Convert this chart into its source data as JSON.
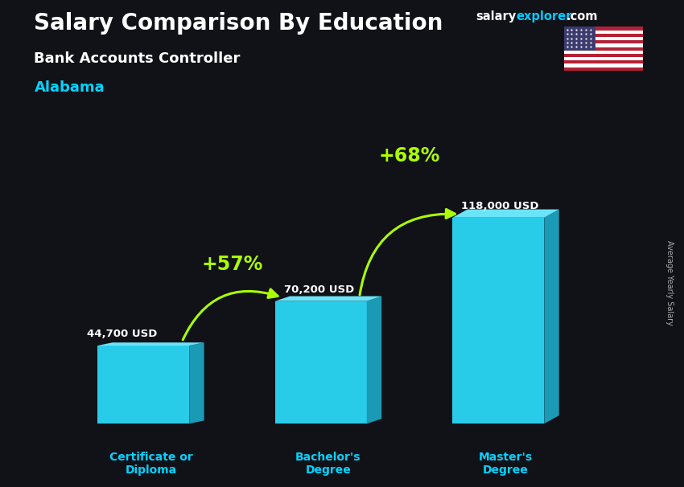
{
  "title": "Salary Comparison By Education",
  "subtitle": "Bank Accounts Controller",
  "location": "Alabama",
  "categories": [
    "Certificate or\nDiploma",
    "Bachelor's\nDegree",
    "Master's\nDegree"
  ],
  "values": [
    44700,
    70200,
    118000
  ],
  "value_labels": [
    "44,700 USD",
    "70,200 USD",
    "118,000 USD"
  ],
  "pct_labels": [
    "+57%",
    "+68%"
  ],
  "bar_face_color": "#29cce8",
  "bar_top_color": "#6ae4f7",
  "bar_side_color": "#1a9ab5",
  "bg_color": "#111118",
  "title_color": "#ffffff",
  "subtitle_color": "#ffffff",
  "location_color": "#00d4ff",
  "value_color": "#ffffff",
  "pct_color": "#aaff00",
  "xlabel_color": "#00d4ff",
  "arrow_color": "#aaff00",
  "ylabel_text": "Average Yearly Salary",
  "ylim": [
    0,
    145000
  ],
  "brand_text1": "salary",
  "brand_text2": "explorer",
  "brand_text3": ".com",
  "brand_color1": "#ffffff",
  "brand_color2": "#00ccff",
  "brand_color3": "#ffffff"
}
